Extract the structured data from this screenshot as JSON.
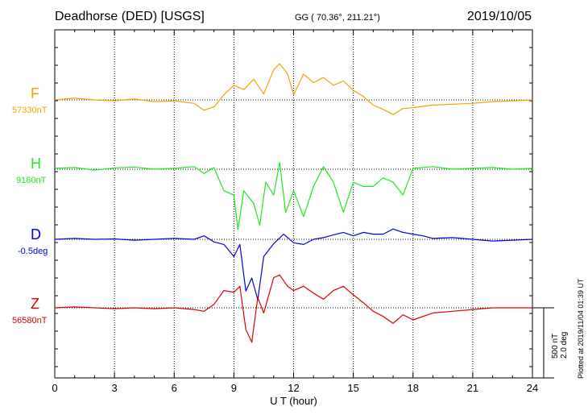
{
  "header": {
    "station": "Deadhorse (DED)  [USGS]",
    "coords": "GG ( 70.36°, 211.21°)",
    "date": "2019/10/05"
  },
  "footer": {
    "plotted": "Plotted at 2019/11/04 01:39 UT",
    "scale_nt": "500 nT",
    "scale_deg": "2.0 deg"
  },
  "chart_data": {
    "type": "line",
    "title": "Deadhorse (DED)  [USGS]",
    "xlabel": "U T (hour)",
    "xlim": [
      0,
      24
    ],
    "xticks": [
      0,
      3,
      6,
      9,
      12,
      15,
      18,
      21,
      24
    ],
    "grid": true,
    "series": [
      {
        "name": "F",
        "baseline": "57330nT",
        "color": "#f2a500",
        "x": [
          0,
          1,
          2,
          3,
          4,
          5,
          6,
          7,
          7.5,
          8,
          8.5,
          9,
          9.5,
          10,
          10.5,
          11,
          11.3,
          11.7,
          12,
          12.5,
          13,
          13.5,
          14,
          14.5,
          15,
          15.5,
          16,
          16.5,
          17,
          17.5,
          18,
          19,
          20,
          21,
          22,
          23,
          24
        ],
        "y": [
          0,
          20,
          0,
          -10,
          10,
          -20,
          -10,
          -40,
          -120,
          -80,
          60,
          170,
          120,
          240,
          70,
          350,
          420,
          300,
          60,
          300,
          200,
          260,
          170,
          220,
          110,
          40,
          -60,
          -110,
          -170,
          -100,
          -90,
          -60,
          -50,
          -40,
          -20,
          -10,
          0
        ]
      },
      {
        "name": "H",
        "baseline": "9180nT",
        "color": "#22e622",
        "x": [
          0,
          1,
          2,
          3,
          4,
          5,
          6,
          7,
          7.5,
          8,
          8.5,
          9,
          9.2,
          9.5,
          10,
          10.3,
          10.6,
          11,
          11.3,
          11.6,
          12,
          12.5,
          13,
          13.5,
          14,
          14.5,
          15,
          15.5,
          16,
          16.5,
          17,
          17.5,
          18,
          19,
          20,
          21,
          22,
          23,
          24
        ],
        "y": [
          10,
          20,
          -10,
          15,
          25,
          0,
          10,
          30,
          -50,
          20,
          -250,
          -300,
          -700,
          -250,
          -400,
          -650,
          -150,
          -300,
          80,
          -500,
          -250,
          -550,
          -200,
          30,
          -150,
          -500,
          -150,
          -200,
          -200,
          -100,
          -150,
          -300,
          10,
          30,
          0,
          10,
          20,
          0,
          10
        ],
        "note_spike_max": null
      },
      {
        "name": "D",
        "baseline": "-0.5deg",
        "color": "#0000e0",
        "x": [
          0,
          1,
          2,
          3,
          4,
          5,
          6,
          7,
          7.5,
          8,
          8.5,
          9,
          9.3,
          9.6,
          9.9,
          10.2,
          10.5,
          11,
          11.5,
          12,
          12.5,
          13,
          13.5,
          14,
          14.5,
          15,
          15.5,
          16,
          16.5,
          17,
          17.5,
          18,
          18.5,
          19,
          20,
          21,
          22,
          23,
          24
        ],
        "y": [
          0,
          10,
          0,
          5,
          -10,
          0,
          10,
          0,
          40,
          -30,
          -60,
          -200,
          -60,
          -600,
          -450,
          -700,
          -200,
          -50,
          60,
          -40,
          -60,
          0,
          20,
          50,
          80,
          40,
          80,
          60,
          60,
          120,
          80,
          60,
          40,
          10,
          20,
          0,
          -20,
          -10,
          0
        ]
      },
      {
        "name": "Z",
        "baseline": "56580nT",
        "color": "#e00000",
        "x": [
          0,
          1,
          2,
          3,
          4,
          5,
          6,
          7,
          7.5,
          8,
          8.5,
          9,
          9.3,
          9.6,
          9.9,
          10.2,
          10.5,
          11,
          11.3,
          11.7,
          12,
          12.5,
          13,
          13.5,
          14,
          14.5,
          15,
          15.5,
          16,
          16.5,
          17,
          17.5,
          18,
          19,
          20,
          21,
          22,
          23,
          24
        ],
        "y": [
          0,
          10,
          0,
          -10,
          0,
          -10,
          0,
          -20,
          -40,
          40,
          200,
          180,
          250,
          -250,
          -400,
          120,
          -60,
          350,
          380,
          250,
          200,
          250,
          170,
          100,
          200,
          250,
          150,
          60,
          -40,
          -100,
          -180,
          -80,
          -140,
          -60,
          -40,
          -20,
          0,
          0,
          0
        ]
      }
    ]
  }
}
